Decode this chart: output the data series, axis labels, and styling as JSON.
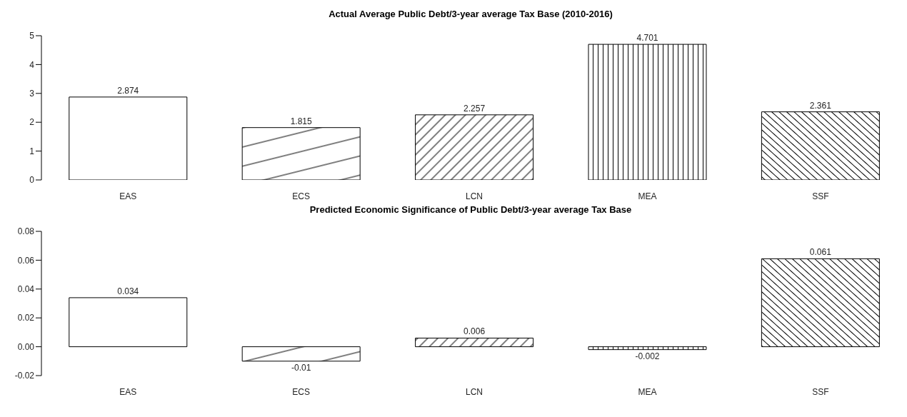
{
  "chart_data": [
    {
      "type": "bar",
      "title": "Actual Average Public Debt/3-year average Tax Base (2010-2016)",
      "categories": [
        "EAS",
        "ECS",
        "LCN",
        "MEA",
        "SSF"
      ],
      "values": [
        2.874,
        1.815,
        2.257,
        4.701,
        2.361
      ],
      "colors": [
        "#ffffff",
        "#000000",
        "#000000",
        "#000000",
        "#000000"
      ],
      "ylim": [
        0,
        5
      ],
      "yticks": [
        0,
        1,
        2,
        3,
        4,
        5
      ],
      "data_labels": true,
      "grid": false,
      "legend": false
    },
    {
      "type": "bar",
      "title": "Predicted Economic Significance of Public Debt/3-year average Tax Base",
      "categories": [
        "EAS",
        "ECS",
        "LCN",
        "MEA",
        "SSF"
      ],
      "values": [
        0.034,
        -0.01,
        0.006,
        -0.002,
        0.061
      ],
      "colors": [
        "#ffffff",
        "#000000",
        "#000000",
        "#000000",
        "#000000"
      ],
      "ylim": [
        -0.02,
        0.08
      ],
      "yticks": [
        {
          "value": -0.02,
          "label": "-0.02"
        },
        {
          "value": 0,
          "label": "0.00"
        },
        {
          "value": 0.02,
          "label": "0.02"
        },
        {
          "value": 0.04,
          "label": "0.04"
        },
        {
          "value": 0.06,
          "label": "0.06"
        },
        {
          "value": 0.08,
          "label": "0.08"
        }
      ],
      "data_labels": true,
      "grid": false,
      "legend": false
    }
  ]
}
